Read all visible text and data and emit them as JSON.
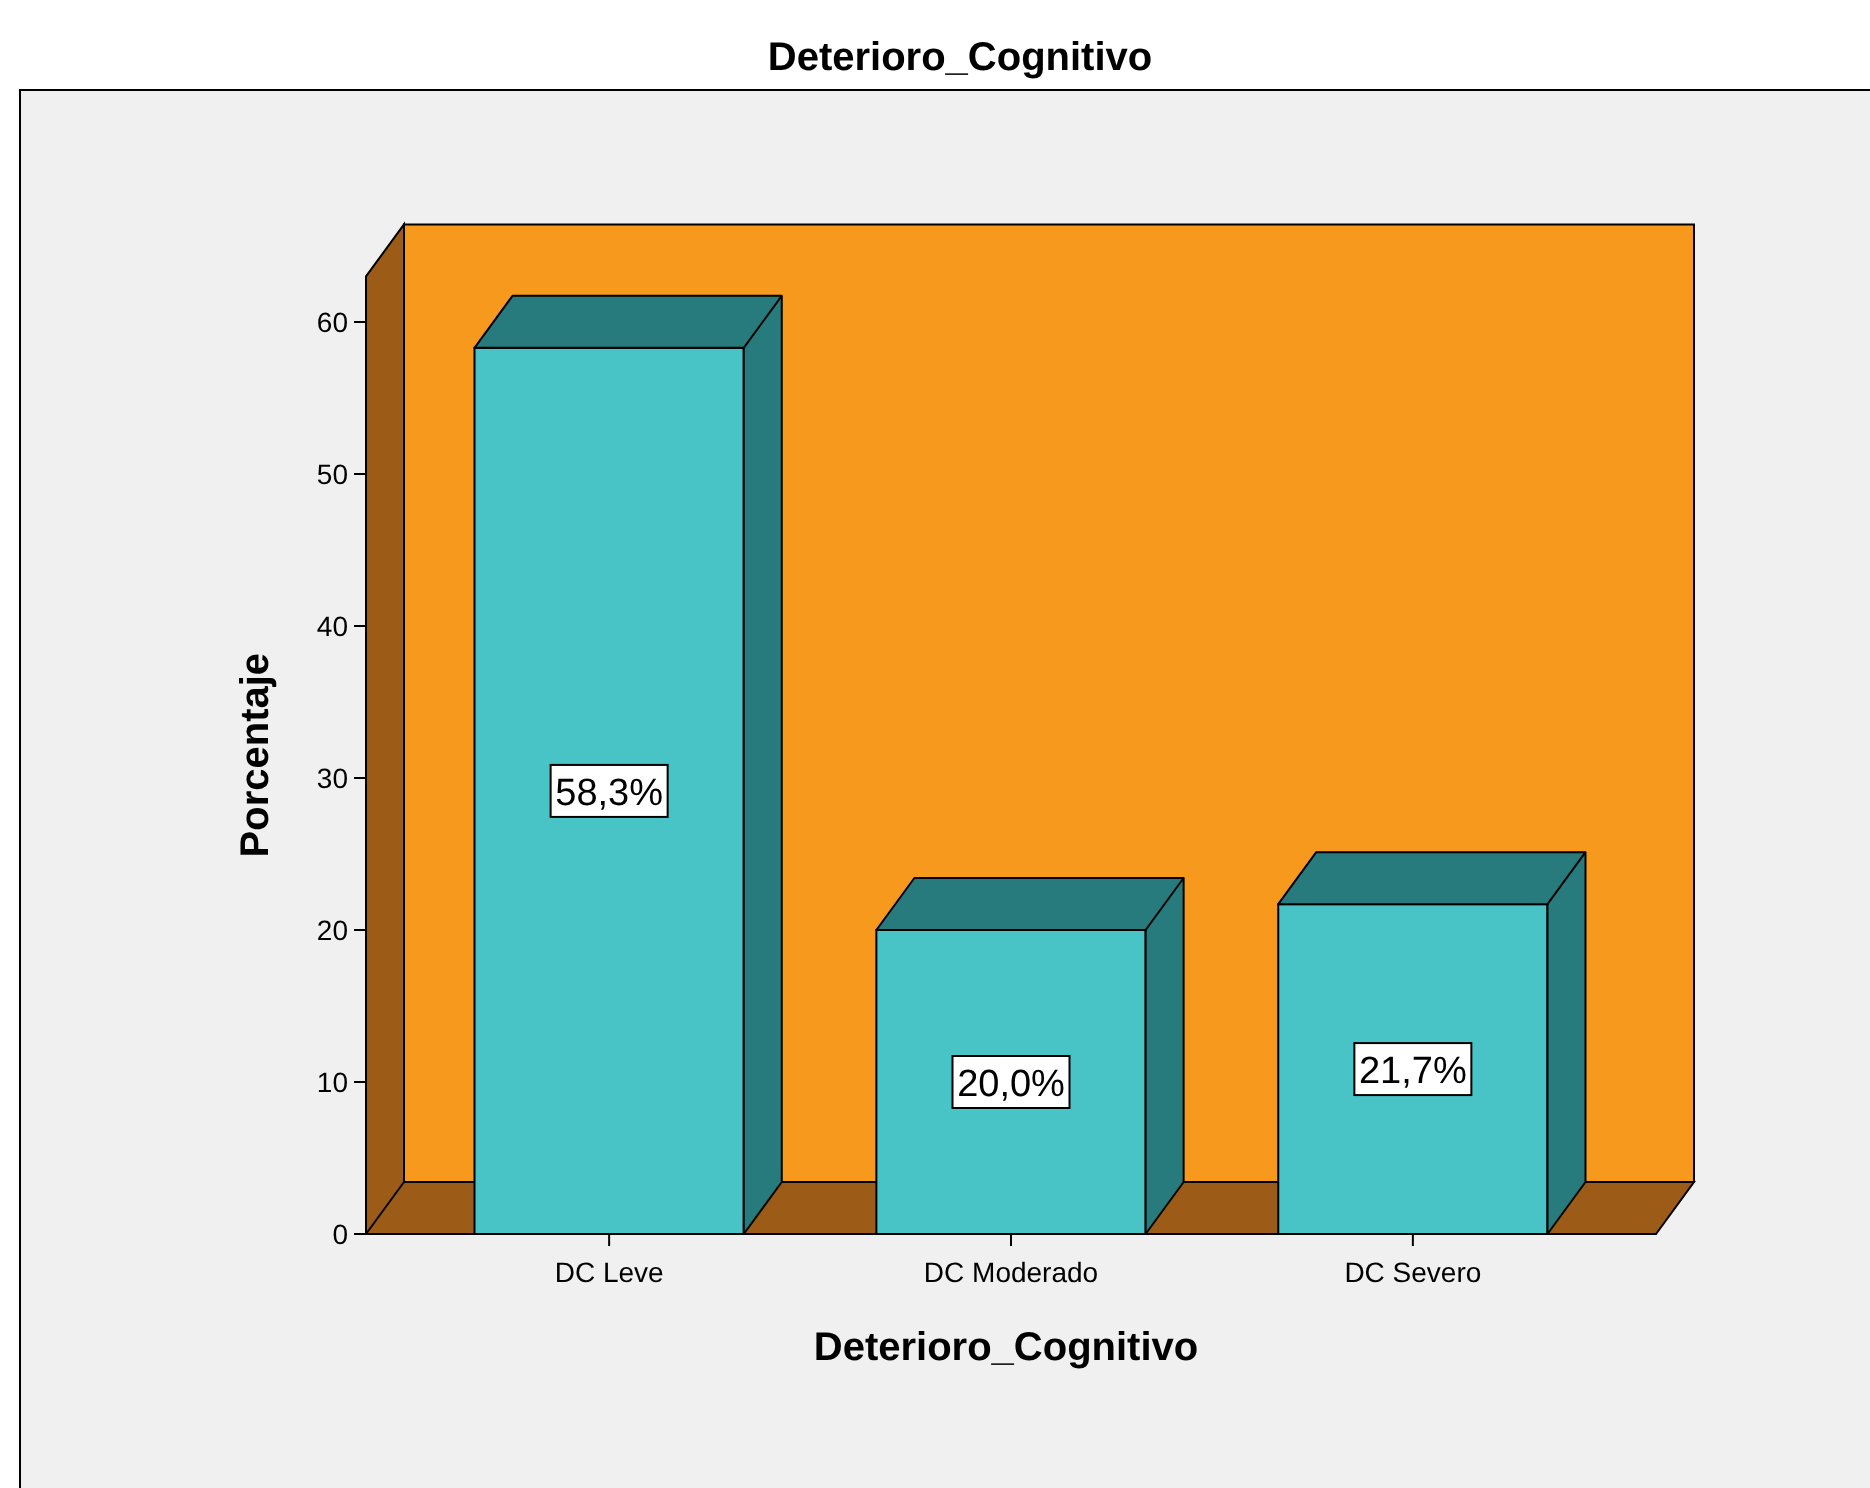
{
  "chart_data": {
    "type": "bar",
    "title": "Deterioro_Cognitivo",
    "xlabel": "Deterioro_Cognitivo",
    "ylabel": "Porcentaje",
    "categories": [
      "DC Leve",
      "DC Moderado",
      "DC Severo"
    ],
    "values": [
      58.3,
      20.0,
      21.7
    ],
    "color": "#48c3c6",
    "value_labels": [
      "58,3%",
      "20,0%",
      "21,7%"
    ],
    "ylim": [
      0,
      63
    ],
    "yticks": [
      0,
      10,
      20,
      30,
      40,
      50,
      60
    ]
  }
}
